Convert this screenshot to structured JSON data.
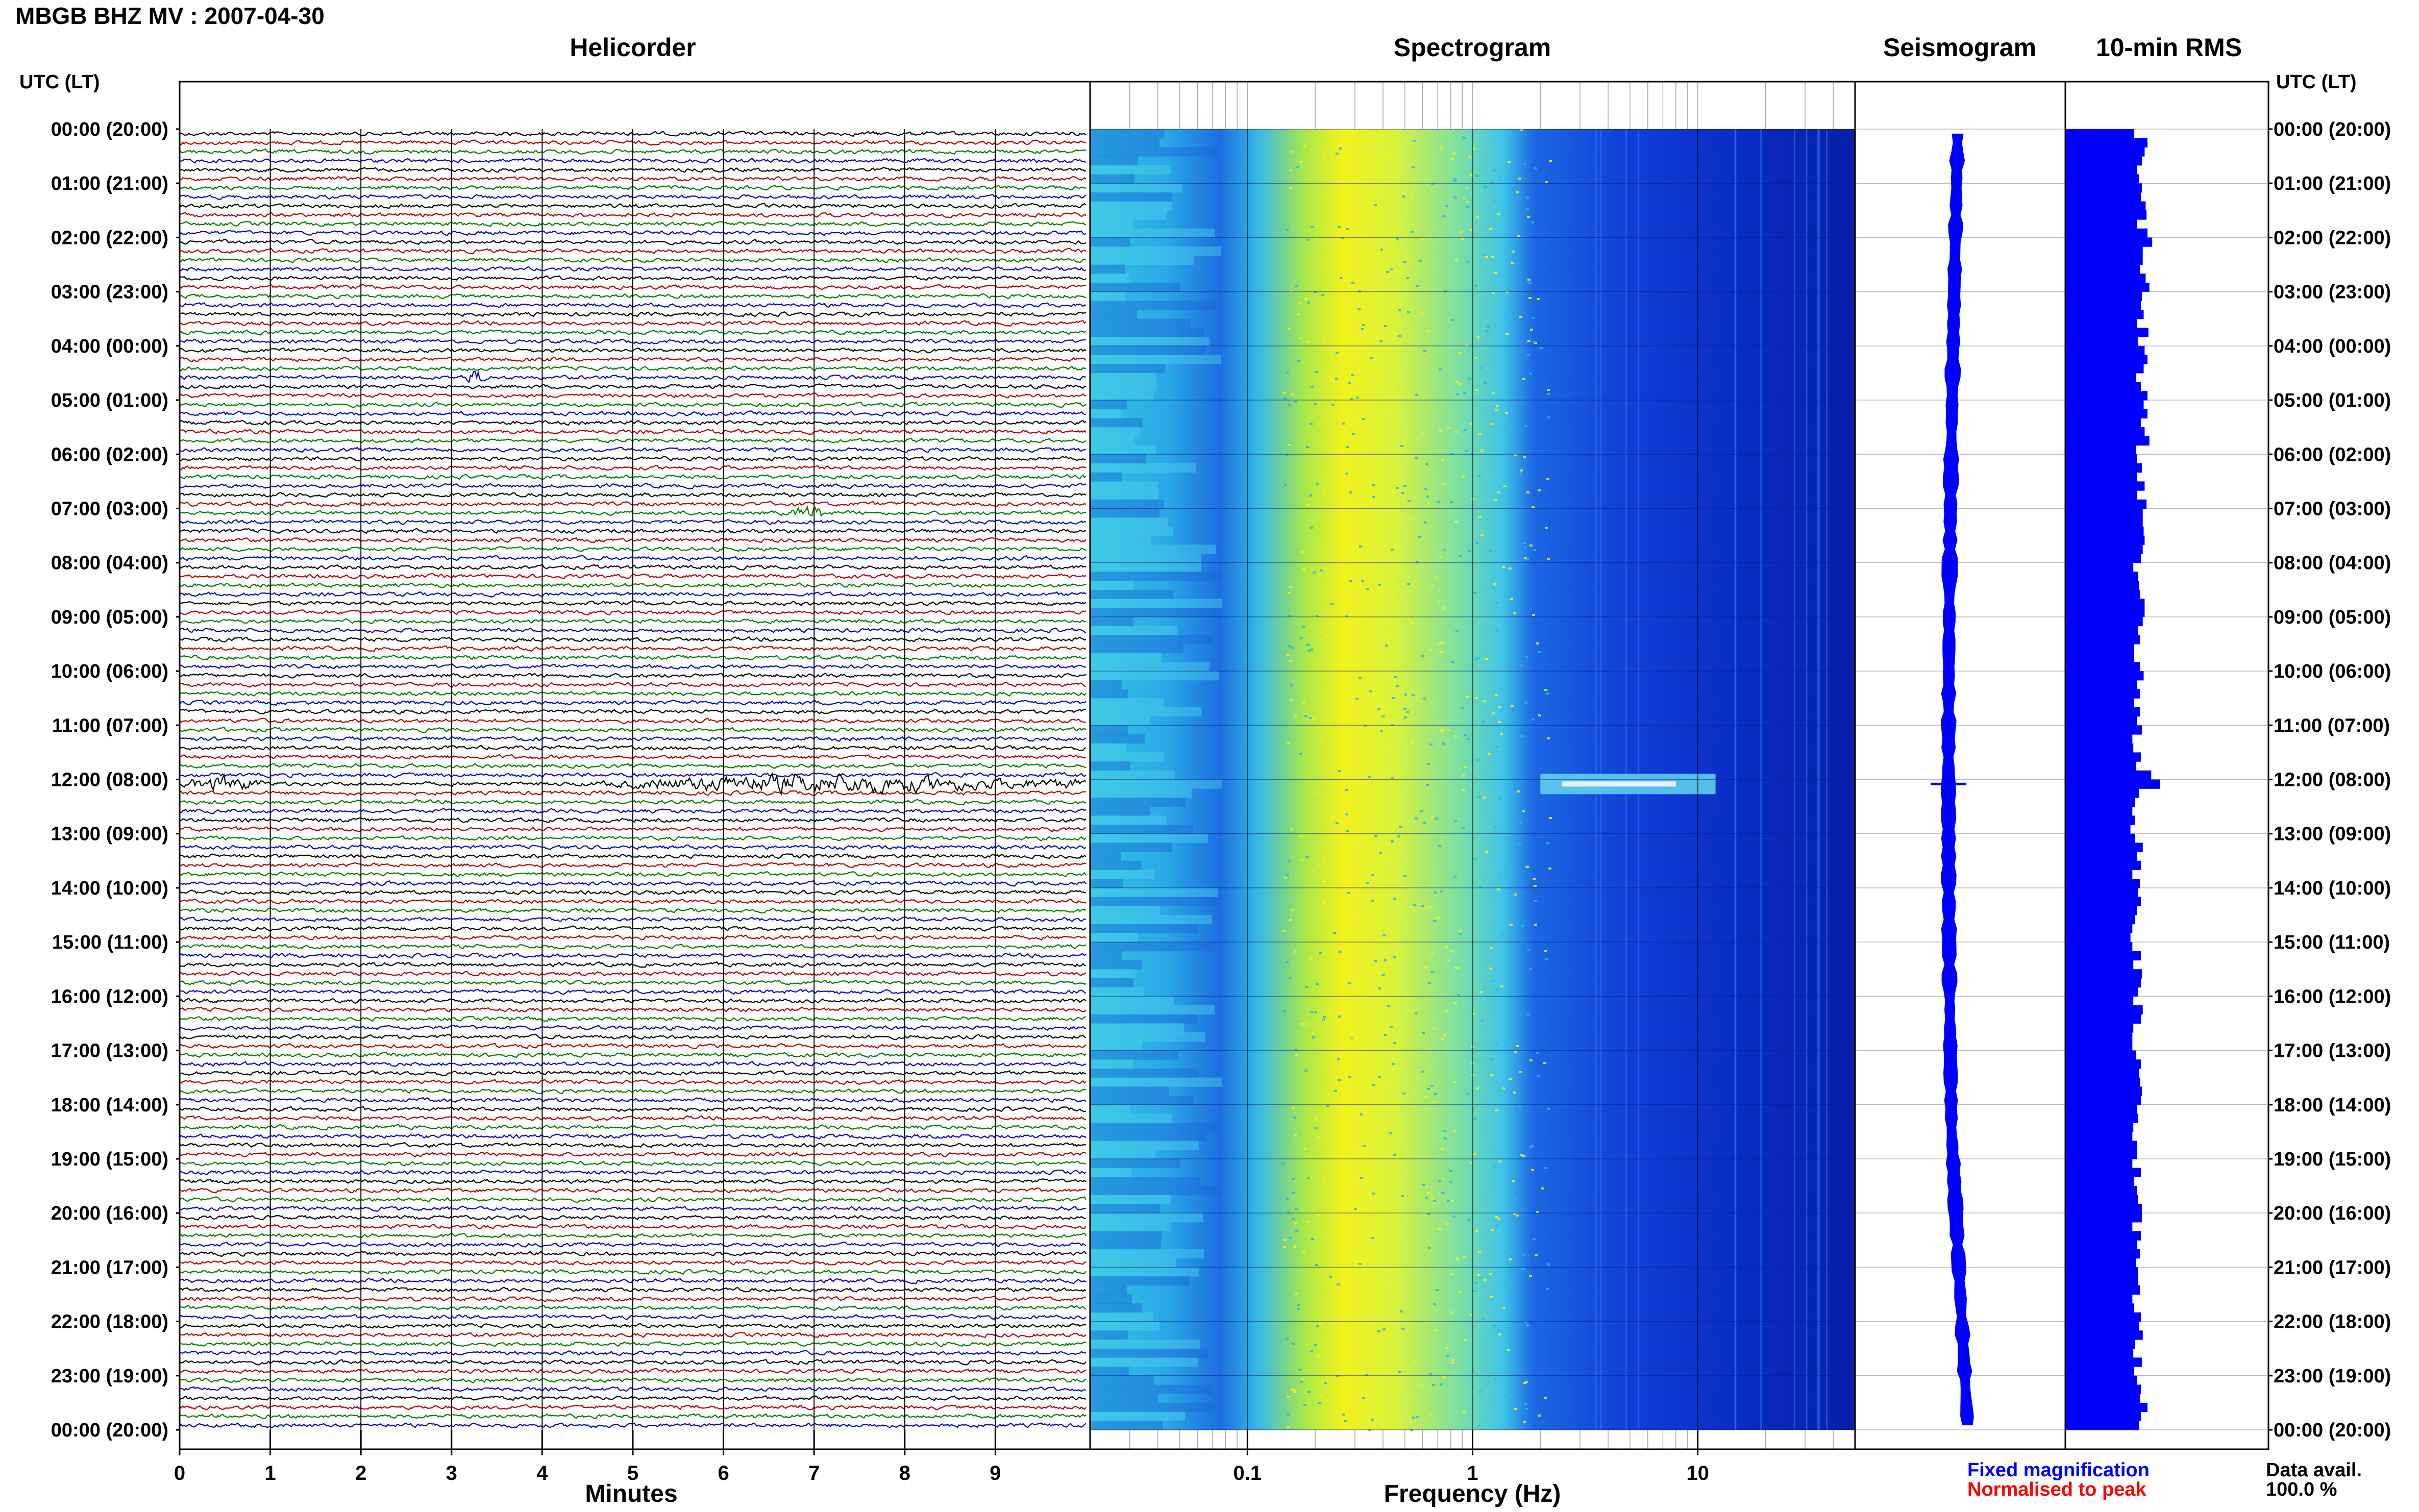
{
  "header": {
    "station": "MBGB BHZ MV : 2007-04-30"
  },
  "panels": {
    "helicorder": "Helicorder",
    "spectrogram": "Spectrogram",
    "seismogram": "Seismogram",
    "rms": "10-min RMS"
  },
  "utc_label": "UTC (LT)",
  "legend": {
    "fixed": "Fixed magnification",
    "normalised": "Normalised to peak",
    "avail_label": "Data avail.",
    "avail_value": "100.0 %"
  },
  "colors": {
    "trace_cycle": [
      "#000000",
      "#b00000",
      "#007a00",
      "#0000cc"
    ],
    "fixed": "#0000ff",
    "normalised": "#ff0000",
    "rms_bar": "#0000ff"
  },
  "chart_data": [
    {
      "type": "line",
      "title": "Helicorder",
      "xlabel": "Minutes",
      "ylabel": "UTC (LT)",
      "xlim": [
        0,
        10
      ],
      "x_ticks": [
        "0",
        "1",
        "2",
        "3",
        "4",
        "5",
        "6",
        "7",
        "8",
        "9"
      ],
      "y_ticks": [
        "00:00 (20:00)",
        "01:00 (21:00)",
        "02:00 (22:00)",
        "03:00 (23:00)",
        "04:00 (00:00)",
        "05:00 (01:00)",
        "06:00 (02:00)",
        "07:00 (03:00)",
        "08:00 (04:00)",
        "09:00 (05:00)",
        "10:00 (06:00)",
        "11:00 (07:00)",
        "12:00 (08:00)",
        "13:00 (09:00)",
        "14:00 (10:00)",
        "15:00 (11:00)",
        "16:00 (12:00)",
        "17:00 (13:00)",
        "18:00 (14:00)",
        "19:00 (15:00)",
        "20:00 (16:00)",
        "21:00 (17:00)",
        "22:00 (18:00)",
        "23:00 (19:00)",
        "00:00 (20:00)"
      ],
      "traces": 144,
      "trace_minutes": 10,
      "events": [
        {
          "trace": 72,
          "minute_start": 0.0,
          "minute_end": 1.2
        },
        {
          "trace": 72,
          "minute_start": 4.5,
          "minute_end": 10.0
        },
        {
          "trace": 42,
          "minute_start": 6.7,
          "minute_end": 7.3
        },
        {
          "trace": 27,
          "minute_start": 3.1,
          "minute_end": 3.5
        }
      ]
    },
    {
      "type": "heatmap",
      "title": "Spectrogram",
      "xlabel": "Frequency (Hz)",
      "x_scale": "log",
      "xlim": [
        0.02,
        50
      ],
      "x_ticks": [
        {
          "value": 0.1,
          "label": "0.1"
        },
        {
          "value": 1,
          "label": "1"
        },
        {
          "value": 10,
          "label": "10"
        }
      ],
      "rows": 144,
      "peak_band_hz": [
        0.2,
        0.5
      ],
      "event_rows": [
        72
      ]
    },
    {
      "type": "line",
      "title": "Seismogram",
      "rows": 144,
      "event_rows": [
        72
      ]
    },
    {
      "type": "bar",
      "title": "10-min RMS",
      "orientation": "horizontal",
      "bars": 144,
      "relative_values": [
        0.73,
        0.87,
        0.84,
        0.81,
        0.76,
        0.78,
        0.81,
        0.8,
        0.85,
        0.86,
        0.76,
        0.87,
        0.92,
        0.82,
        0.82,
        0.79,
        0.85,
        0.89,
        0.81,
        0.8,
        0.83,
        0.76,
        0.88,
        0.77,
        0.84,
        0.87,
        0.83,
        0.75,
        0.8,
        0.87,
        0.83,
        0.87,
        0.8,
        0.84,
        0.89,
        0.75,
        0.76,
        0.81,
        0.76,
        0.84,
        0.76,
        0.86,
        0.82,
        0.82,
        0.83,
        0.84,
        0.82,
        0.8,
        0.72,
        0.77,
        0.78,
        0.79,
        0.84,
        0.84,
        0.82,
        0.77,
        0.79,
        0.73,
        0.73,
        0.79,
        0.83,
        0.76,
        0.79,
        0.73,
        0.79,
        0.76,
        0.81,
        0.71,
        0.72,
        0.8,
        0.75,
        0.91,
        1.0,
        0.78,
        0.74,
        0.71,
        0.74,
        0.69,
        0.74,
        0.82,
        0.76,
        0.8,
        0.71,
        0.79,
        0.77,
        0.8,
        0.76,
        0.74,
        0.71,
        0.69,
        0.71,
        0.8,
        0.72,
        0.81,
        0.8,
        0.77,
        0.72,
        0.82,
        0.8,
        0.72,
        0.71,
        0.71,
        0.75,
        0.8,
        0.78,
        0.79,
        0.81,
        0.8,
        0.76,
        0.77,
        0.72,
        0.71,
        0.76,
        0.76,
        0.71,
        0.8,
        0.73,
        0.76,
        0.77,
        0.81,
        0.81,
        0.71,
        0.8,
        0.76,
        0.79,
        0.75,
        0.77,
        0.77,
        0.79,
        0.71,
        0.73,
        0.8,
        0.78,
        0.82,
        0.74,
        0.72,
        0.81,
        0.73,
        0.76,
        0.8,
        0.79,
        0.87,
        0.8,
        0.78
      ]
    }
  ]
}
